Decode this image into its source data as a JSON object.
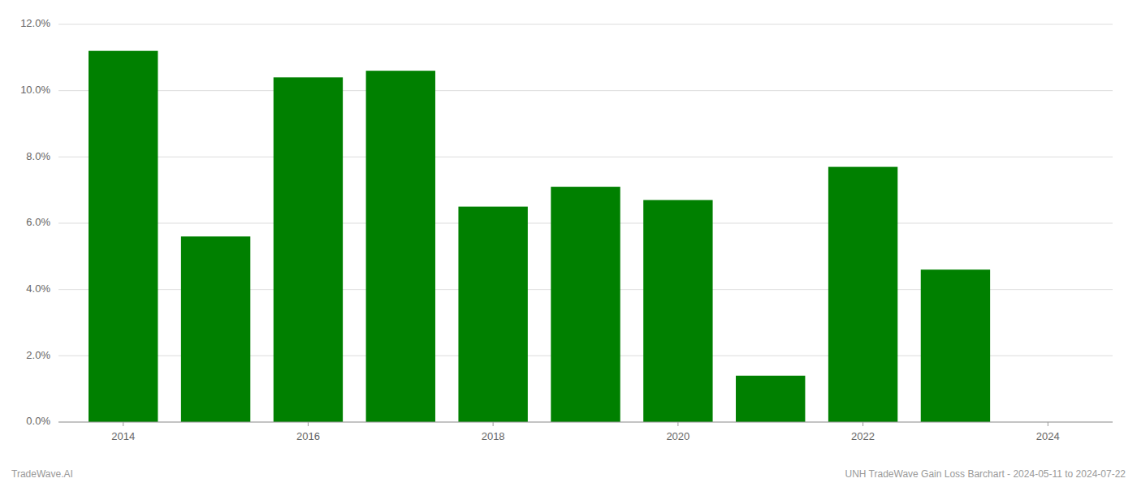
{
  "chart_data": {
    "type": "bar",
    "x": [
      2014,
      2015,
      2016,
      2017,
      2018,
      2019,
      2020,
      2021,
      2022,
      2023
    ],
    "values": [
      0.112,
      0.056,
      0.104,
      0.106,
      0.065,
      0.071,
      0.067,
      0.014,
      0.077,
      0.046
    ],
    "color": "#008000",
    "xlim": [
      2013.3,
      2024.7
    ],
    "xticks": [
      2014,
      2016,
      2018,
      2020,
      2022,
      2024
    ],
    "ylim": [
      0,
      0.12
    ],
    "yticks": [
      {
        "value": 0,
        "label": "0.0%"
      },
      {
        "value": 0.02,
        "label": "2.0%"
      },
      {
        "value": 0.04,
        "label": "4.0%"
      },
      {
        "value": 0.06,
        "label": "6.0%"
      },
      {
        "value": 0.08,
        "label": "8.0%"
      },
      {
        "value": 0.1,
        "label": "10.0%"
      },
      {
        "value": 0.12,
        "label": "12.0%"
      }
    ],
    "grid": true,
    "annotations": [
      "TradeWave.AI",
      "UNH TradeWave Gain Loss Barchart - 2024-05-11 to 2024-07-22"
    ]
  }
}
